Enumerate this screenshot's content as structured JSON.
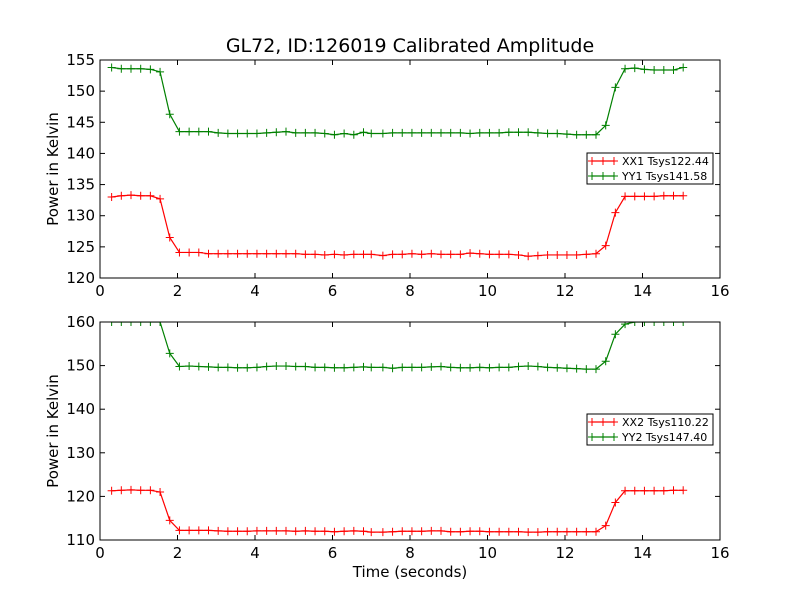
{
  "chart_data": {
    "title": "GL72, ID:126019 Calibrated Amplitude",
    "xlabel": "Time (seconds)",
    "subplots": [
      {
        "type": "line",
        "ylabel": "Power in Kelvin",
        "xlim": [
          0,
          16
        ],
        "ylim": [
          120,
          155
        ],
        "x_ticks": [
          0,
          2,
          4,
          6,
          8,
          10,
          12,
          14,
          16
        ],
        "y_ticks": [
          120,
          125,
          130,
          135,
          140,
          145,
          150,
          155
        ],
        "grid": false,
        "legend_position": "center-right",
        "x": [
          0.3,
          0.55,
          0.8,
          1.05,
          1.3,
          1.55,
          1.8,
          2.05,
          2.3,
          2.55,
          2.8,
          3.05,
          3.3,
          3.55,
          3.8,
          4.05,
          4.3,
          4.55,
          4.8,
          5.05,
          5.3,
          5.55,
          5.8,
          6.05,
          6.3,
          6.55,
          6.8,
          7.0,
          7.3,
          7.55,
          7.8,
          8.05,
          8.3,
          8.55,
          8.8,
          9.05,
          9.3,
          9.55,
          9.8,
          10.05,
          10.3,
          10.55,
          10.8,
          11.05,
          11.3,
          11.55,
          11.8,
          12.05,
          12.3,
          12.55,
          12.8,
          13.05,
          13.3,
          13.55,
          13.8,
          14.05,
          14.3,
          14.55,
          14.8,
          15.05
        ],
        "series": [
          {
            "name": "XX1 Tsys122.44",
            "color": "#ff0000",
            "values": [
              133.0,
              133.2,
              133.3,
              133.2,
              133.2,
              132.7,
              126.5,
              124.1,
              124.1,
              124.1,
              123.9,
              123.9,
              123.9,
              123.9,
              123.9,
              123.9,
              123.9,
              123.9,
              123.9,
              123.9,
              123.8,
              123.8,
              123.7,
              123.8,
              123.7,
              123.8,
              123.8,
              123.8,
              123.6,
              123.8,
              123.8,
              123.9,
              123.8,
              123.9,
              123.8,
              123.8,
              123.8,
              124.0,
              123.9,
              123.8,
              123.8,
              123.8,
              123.7,
              123.5,
              123.6,
              123.7,
              123.7,
              123.7,
              123.7,
              123.8,
              123.9,
              125.2,
              130.5,
              133.1,
              133.1,
              133.1,
              133.1,
              133.2,
              133.2,
              133.2
            ]
          },
          {
            "name": "YY1 Tsys141.58",
            "color": "#008000",
            "values": [
              153.8,
              153.6,
              153.6,
              153.6,
              153.5,
              153.1,
              146.3,
              143.5,
              143.5,
              143.5,
              143.5,
              143.3,
              143.2,
              143.2,
              143.2,
              143.2,
              143.3,
              143.4,
              143.5,
              143.3,
              143.3,
              143.3,
              143.2,
              143.0,
              143.2,
              143.0,
              143.4,
              143.2,
              143.2,
              143.3,
              143.3,
              143.3,
              143.3,
              143.3,
              143.3,
              143.3,
              143.3,
              143.2,
              143.3,
              143.3,
              143.3,
              143.4,
              143.4,
              143.4,
              143.3,
              143.2,
              143.2,
              143.1,
              143.0,
              143.0,
              143.0,
              144.5,
              150.6,
              153.6,
              153.7,
              153.5,
              153.4,
              153.4,
              153.4,
              153.8
            ]
          }
        ]
      },
      {
        "type": "line",
        "ylabel": "Power in Kelvin",
        "xlim": [
          0,
          16
        ],
        "ylim": [
          110,
          160
        ],
        "x_ticks": [
          0,
          2,
          4,
          6,
          8,
          10,
          12,
          14,
          16
        ],
        "y_ticks": [
          110,
          120,
          130,
          140,
          150,
          160
        ],
        "grid": false,
        "legend_position": "center-right",
        "x": [
          0.3,
          0.55,
          0.8,
          1.05,
          1.3,
          1.55,
          1.8,
          2.05,
          2.3,
          2.55,
          2.8,
          3.05,
          3.3,
          3.55,
          3.8,
          4.05,
          4.3,
          4.55,
          4.8,
          5.05,
          5.3,
          5.55,
          5.8,
          6.05,
          6.3,
          6.55,
          6.8,
          7.0,
          7.3,
          7.55,
          7.8,
          8.05,
          8.3,
          8.55,
          8.8,
          9.05,
          9.3,
          9.55,
          9.8,
          10.05,
          10.3,
          10.55,
          10.8,
          11.05,
          11.3,
          11.55,
          11.8,
          12.05,
          12.3,
          12.55,
          12.8,
          13.05,
          13.3,
          13.55,
          13.8,
          14.05,
          14.3,
          14.55,
          14.8,
          15.05
        ],
        "series": [
          {
            "name": "XX2 Tsys110.22",
            "color": "#ff0000",
            "values": [
              121.3,
              121.4,
              121.5,
              121.4,
              121.4,
              121.0,
              114.5,
              112.2,
              112.2,
              112.2,
              112.2,
              112.1,
              112.0,
              112.0,
              112.0,
              112.1,
              112.1,
              112.1,
              112.1,
              112.0,
              112.1,
              112.0,
              112.0,
              111.9,
              112.0,
              112.1,
              112.0,
              111.8,
              111.8,
              111.9,
              112.0,
              112.0,
              112.0,
              112.1,
              112.1,
              111.9,
              111.9,
              112.0,
              112.0,
              111.9,
              111.9,
              111.9,
              111.9,
              111.8,
              111.8,
              111.9,
              111.9,
              111.9,
              111.9,
              111.9,
              111.9,
              113.3,
              118.6,
              121.3,
              121.3,
              121.3,
              121.3,
              121.3,
              121.4,
              121.4
            ]
          },
          {
            "name": "YY2 Tsys147.40",
            "color": "#008000",
            "values": [
              160.0,
              160.0,
              160.0,
              160.0,
              160.0,
              160.0,
              152.8,
              149.8,
              149.9,
              149.8,
              149.7,
              149.6,
              149.6,
              149.5,
              149.5,
              149.6,
              149.8,
              149.9,
              149.9,
              149.8,
              149.8,
              149.6,
              149.6,
              149.5,
              149.5,
              149.6,
              149.7,
              149.6,
              149.6,
              149.4,
              149.6,
              149.6,
              149.6,
              149.7,
              149.8,
              149.6,
              149.5,
              149.5,
              149.6,
              149.5,
              149.6,
              149.6,
              149.8,
              149.9,
              149.8,
              149.6,
              149.5,
              149.4,
              149.3,
              149.2,
              149.2,
              151.0,
              157.2,
              159.5,
              160.0,
              160.0,
              160.0,
              160.0,
              160.0,
              160.0
            ]
          }
        ]
      }
    ]
  }
}
